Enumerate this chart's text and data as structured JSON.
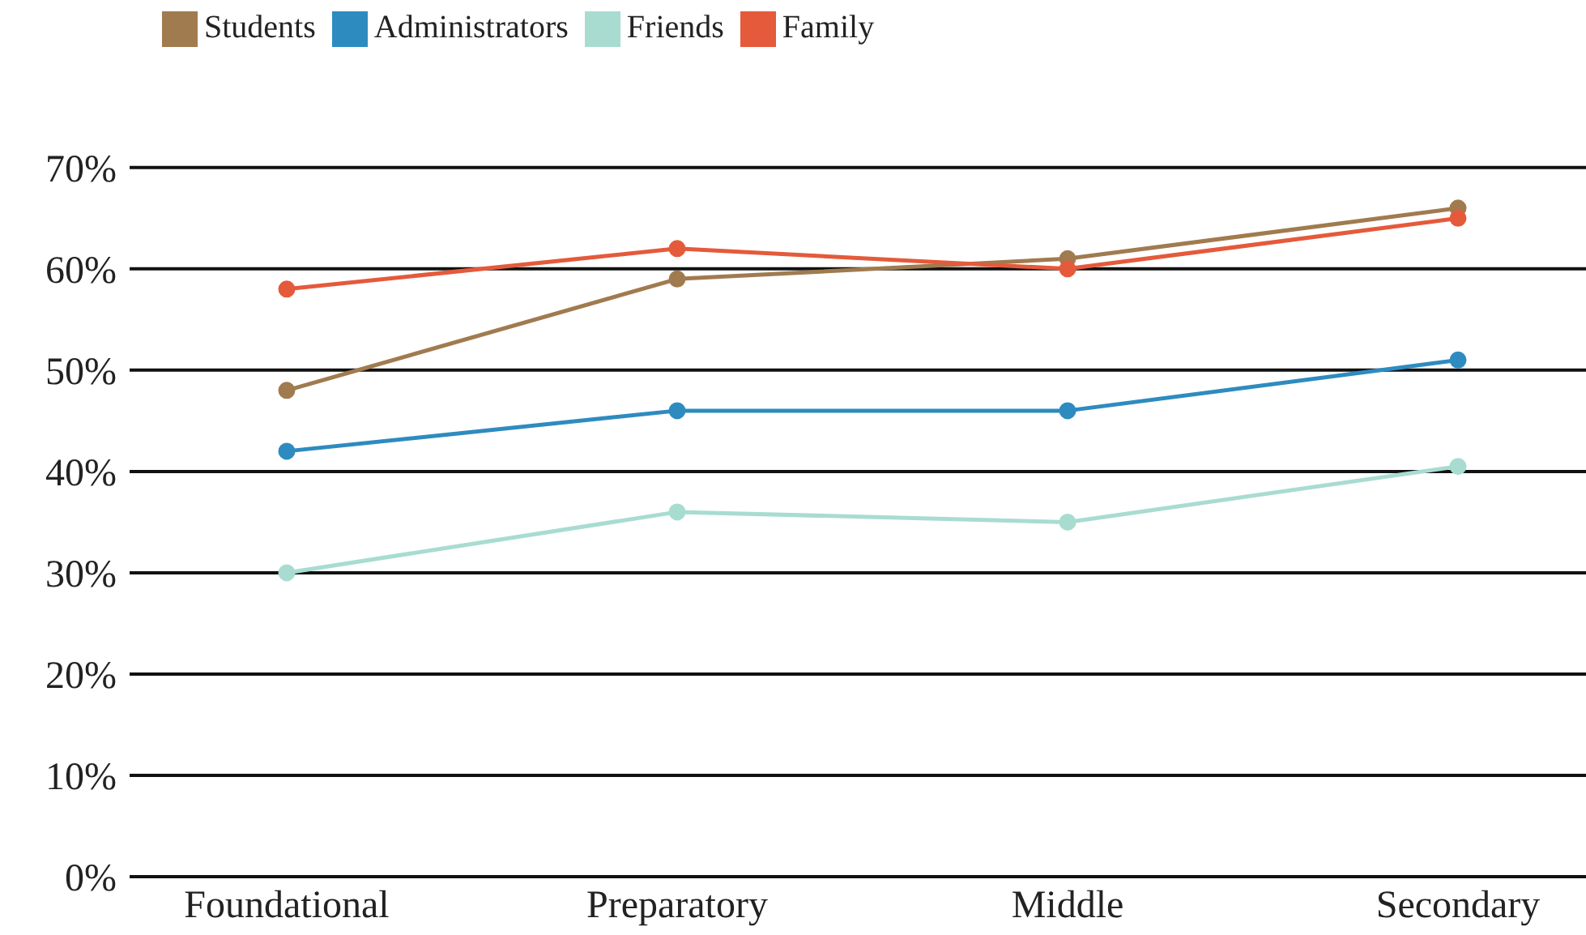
{
  "chart_data": {
    "type": "line",
    "categories": [
      "Foundational",
      "Preparatory",
      "Middle",
      "Secondary"
    ],
    "series": [
      {
        "name": "Students",
        "color": "#a07b4f",
        "values": [
          48,
          59,
          61,
          66
        ]
      },
      {
        "name": "Administrators",
        "color": "#2e8bc0",
        "values": [
          42,
          46,
          46,
          51
        ]
      },
      {
        "name": "Friends",
        "color": "#a8dcd1",
        "values": [
          30,
          36,
          35,
          40.5
        ]
      },
      {
        "name": "Family",
        "color": "#e45a3b",
        "values": [
          58,
          62,
          60,
          65
        ]
      }
    ],
    "ylim": [
      0,
      70
    ],
    "yticks": [
      {
        "value": 0,
        "label": "0%"
      },
      {
        "value": 10,
        "label": "10%"
      },
      {
        "value": 20,
        "label": "20%"
      },
      {
        "value": 30,
        "label": "30%"
      },
      {
        "value": 40,
        "label": "40%"
      },
      {
        "value": 50,
        "label": "50%"
      },
      {
        "value": 60,
        "label": "60%"
      },
      {
        "value": 70,
        "label": "70%"
      }
    ],
    "grid": "y",
    "legend": "top left",
    "marker": "circle",
    "line_style": "solid"
  }
}
